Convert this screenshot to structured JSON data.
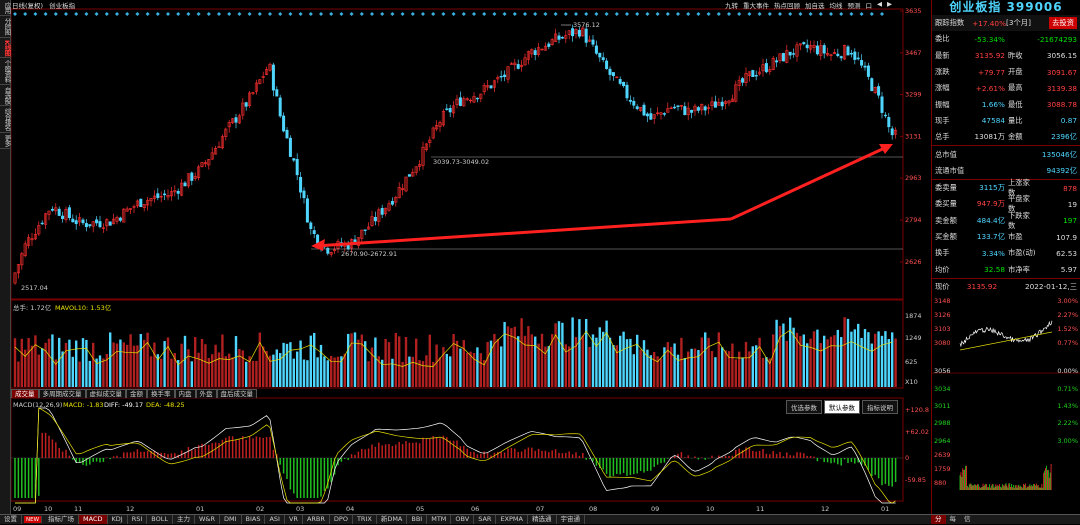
{
  "app": {
    "mode": "日线(复权)",
    "index_name": "创业板指"
  },
  "left_tabs": [
    {
      "label": "应用",
      "active": false
    },
    {
      "label": "分时图",
      "active": false
    },
    {
      "label": "K线图",
      "active": true
    },
    {
      "label": "个股资料",
      "active": false
    },
    {
      "label": "自选股",
      "active": false
    },
    {
      "label": "综合排名",
      "active": false
    },
    {
      "label": "更多",
      "active": false
    }
  ],
  "top_menu": [
    "九转",
    "重大事件",
    "热点回顾",
    "加自选",
    "均线",
    "预测",
    "口",
    "◀",
    "▶"
  ],
  "price_axis": [
    "3635",
    "3467",
    "3299",
    "3131",
    "2963",
    "2794",
    "2626"
  ],
  "price_annotations": {
    "high": "3576.12",
    "low": "2517.04",
    "upper_range": "3039.73-3049.02",
    "lower_range": "2670.90-2672.91"
  },
  "volume": {
    "header": "总手: 1.72亿",
    "ma_label": "MAVOL10: 1.53亿",
    "axis": [
      "1874",
      "1249",
      "625",
      "X10"
    ]
  },
  "volume_tabs": [
    {
      "label": "成交量",
      "active": true
    },
    {
      "label": "多周期成交量",
      "active": false
    },
    {
      "label": "虚拟成交量",
      "active": false
    },
    {
      "label": "金额",
      "active": false
    },
    {
      "label": "换手率",
      "active": false
    },
    {
      "label": "内盘",
      "active": false
    },
    {
      "label": "外盘",
      "active": false
    },
    {
      "label": "盘后成交量",
      "active": false
    }
  ],
  "macd": {
    "title": "MACD(12,26,9)",
    "macd_value": "MACD: -1.83",
    "diff_value": "DIFF: -49.17",
    "dea_value": "DEA: -48.25",
    "axis": [
      "+120.8",
      "+62.02",
      "0",
      "-59.85"
    ],
    "buttons": [
      {
        "label": "优选参数",
        "active": false
      },
      {
        "label": "默认参数",
        "active": true
      },
      {
        "label": "指标说明",
        "active": false
      }
    ]
  },
  "months": [
    "09",
    "10",
    "11",
    "12",
    "01",
    "02",
    "03",
    "04",
    "05",
    "06",
    "07",
    "08",
    "09",
    "10",
    "11",
    "12",
    "01"
  ],
  "bottom_tabs": [
    {
      "label": "设置",
      "active": false
    },
    {
      "label": "NEW",
      "active": false,
      "badge": true
    },
    {
      "label": "指标广场",
      "active": false
    },
    {
      "label": "MACD",
      "active": true
    },
    {
      "label": "KDJ",
      "active": false
    },
    {
      "label": "RSI",
      "active": false
    },
    {
      "label": "BOLL",
      "active": false
    },
    {
      "label": "主力",
      "active": false
    },
    {
      "label": "W&R",
      "active": false
    },
    {
      "label": "DMI",
      "active": false
    },
    {
      "label": "BIAS",
      "active": false
    },
    {
      "label": "ASI",
      "active": false
    },
    {
      "label": "VR",
      "active": false
    },
    {
      "label": "ARBR",
      "active": false
    },
    {
      "label": "DPO",
      "active": false
    },
    {
      "label": "TRIX",
      "active": false
    },
    {
      "label": "新DMA",
      "active": false
    },
    {
      "label": "BBI",
      "active": false
    },
    {
      "label": "MTM",
      "active": false
    },
    {
      "label": "OBV",
      "active": false
    },
    {
      "label": "SAR",
      "active": false
    },
    {
      "label": "EXPMA",
      "active": false
    },
    {
      "label": "精选通",
      "active": false
    },
    {
      "label": "宇宙通",
      "active": false
    }
  ],
  "right_panel": {
    "title": "创业板指 399006",
    "tracking": {
      "label": "跟踪指数",
      "value": "+17.40%",
      "period": "[3个月]",
      "button": "去投资"
    },
    "rows": [
      {
        "l1": "委比",
        "v1": "-53.34%",
        "c1": "green",
        "l2": "",
        "v2": "-21674293",
        "c2": "green"
      },
      {
        "l1": "最新",
        "v1": "3135.92",
        "c1": "red",
        "l2": "昨收",
        "v2": "3056.15",
        "c2": "white"
      },
      {
        "l1": "涨跌",
        "v1": "+79.77",
        "c1": "red",
        "l2": "开盘",
        "v2": "3091.67",
        "c2": "red"
      },
      {
        "l1": "涨幅",
        "v1": "+2.61%",
        "c1": "red",
        "l2": "最高",
        "v2": "3139.38",
        "c2": "red"
      },
      {
        "l1": "振幅",
        "v1": "1.66%",
        "c1": "cyan",
        "l2": "最低",
        "v2": "3088.78",
        "c2": "red"
      },
      {
        "l1": "现手",
        "v1": "47584",
        "c1": "cyan",
        "l2": "量比",
        "v2": "0.87",
        "c2": "cyan"
      },
      {
        "l1": "总手",
        "v1": "13081万",
        "c1": "white",
        "l2": "金额",
        "v2": "2396亿",
        "c2": "cyan"
      }
    ],
    "rows2": [
      {
        "label": "总市值",
        "value": "135046亿"
      },
      {
        "label": "流通市值",
        "value": "94392亿"
      }
    ],
    "rows3": [
      {
        "l1": "委卖量",
        "v1": "3115万",
        "c1": "cyan",
        "l2": "上涨家数",
        "v2": "878",
        "c2": "red"
      },
      {
        "l1": "委买量",
        "v1": "947.9万",
        "c1": "red",
        "l2": "平盘家数",
        "v2": "19",
        "c2": "white"
      },
      {
        "l1": "卖金额",
        "v1": "484.4亿",
        "c1": "cyan",
        "l2": "下跌家数",
        "v2": "197",
        "c2": "green"
      },
      {
        "l1": "买金额",
        "v1": "133.7亿",
        "c1": "cyan",
        "l2": "市盈",
        "v2": "107.9",
        "c2": "white"
      },
      {
        "l1": "换手",
        "v1": "3.34%",
        "c1": "cyan",
        "l2": "市盈(动)",
        "v2": "62.53",
        "c2": "white"
      },
      {
        "l1": "均价",
        "v1": "32.58",
        "c1": "green",
        "l2": "市净率",
        "v2": "5.97",
        "c2": "white"
      }
    ],
    "mini": {
      "now_label": "现价",
      "now_value": "3135.92",
      "date": "2022-01-12,三",
      "left_axis": [
        "3148",
        "3126",
        "3103",
        "3080",
        "3056",
        "3034",
        "3011",
        "2988",
        "2964",
        "2639",
        "1759",
        "880"
      ],
      "right_axis": [
        "3.00%",
        "2.27%",
        "1.52%",
        "0.77%",
        "0.00%",
        "0.71%",
        "1.43%",
        "2.22%",
        "3.00%"
      ],
      "tabs": [
        {
          "label": "分",
          "active": true
        },
        {
          "label": "每",
          "active": false
        },
        {
          "label": "信",
          "active": false
        }
      ]
    }
  },
  "colors": {
    "up": "#ff3030",
    "down": "#4fd6ff",
    "ma_yellow": "#e8e000",
    "ma_white": "#ffffff",
    "arrow": "#ff2020"
  }
}
